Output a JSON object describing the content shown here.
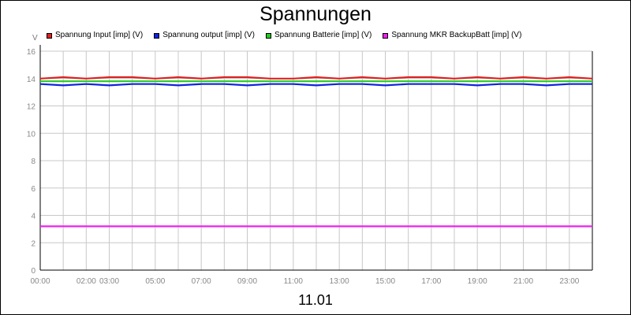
{
  "chart_data": {
    "type": "line",
    "title": "Spannungen",
    "ylabel": "V",
    "xlabel": "11.01",
    "xlim": [
      0,
      24
    ],
    "ylim": [
      0,
      16
    ],
    "yticks": [
      0,
      2,
      4,
      6,
      8,
      10,
      12,
      14,
      16
    ],
    "xticks": [
      {
        "t": 0,
        "label": "00:00"
      },
      {
        "t": 2,
        "label": "02:00"
      },
      {
        "t": 3,
        "label": "03:00"
      },
      {
        "t": 5,
        "label": "05:00"
      },
      {
        "t": 7,
        "label": "07:00"
      },
      {
        "t": 9,
        "label": "09:00"
      },
      {
        "t": 11,
        "label": "11:00"
      },
      {
        "t": 13,
        "label": "13:00"
      },
      {
        "t": 15,
        "label": "15:00"
      },
      {
        "t": 17,
        "label": "17:00"
      },
      {
        "t": 19,
        "label": "19:00"
      },
      {
        "t": 21,
        "label": "21:00"
      },
      {
        "t": 23,
        "label": "23:00"
      }
    ],
    "grid": true,
    "legend_position": "top",
    "series": [
      {
        "name": "Spannung Input [imp] (V)",
        "color": "#dd2222",
        "x": [
          0,
          1,
          2,
          3,
          4,
          5,
          6,
          7,
          8,
          9,
          10,
          11,
          12,
          13,
          14,
          15,
          16,
          17,
          18,
          19,
          20,
          21,
          22,
          23,
          24
        ],
        "y": [
          14.0,
          14.1,
          14.0,
          14.1,
          14.1,
          14.0,
          14.1,
          14.0,
          14.1,
          14.1,
          14.0,
          14.0,
          14.1,
          14.0,
          14.1,
          14.0,
          14.1,
          14.1,
          14.0,
          14.1,
          14.0,
          14.1,
          14.0,
          14.1,
          14.0
        ]
      },
      {
        "name": "Spannung output [imp] (V)",
        "color": "#1122dd",
        "x": [
          0,
          1,
          2,
          3,
          4,
          5,
          6,
          7,
          8,
          9,
          10,
          11,
          12,
          13,
          14,
          15,
          16,
          17,
          18,
          19,
          20,
          21,
          22,
          23,
          24
        ],
        "y": [
          13.6,
          13.5,
          13.6,
          13.5,
          13.6,
          13.6,
          13.5,
          13.6,
          13.6,
          13.5,
          13.6,
          13.6,
          13.5,
          13.6,
          13.6,
          13.5,
          13.6,
          13.6,
          13.6,
          13.5,
          13.6,
          13.6,
          13.5,
          13.6,
          13.6
        ]
      },
      {
        "name": "Spannung Batterie [imp] (V)",
        "color": "#22cc22",
        "x": [
          0,
          1,
          2,
          3,
          4,
          5,
          6,
          7,
          8,
          9,
          10,
          11,
          12,
          13,
          14,
          15,
          16,
          17,
          18,
          19,
          20,
          21,
          22,
          23,
          24
        ],
        "y": [
          13.8,
          13.8,
          13.8,
          13.8,
          13.8,
          13.8,
          13.8,
          13.8,
          13.8,
          13.8,
          13.8,
          13.8,
          13.8,
          13.8,
          13.8,
          13.8,
          13.8,
          13.8,
          13.8,
          13.8,
          13.8,
          13.8,
          13.8,
          13.8,
          13.8
        ]
      },
      {
        "name": "Spannung MKR BackupBatt [imp] (V)",
        "color": "#ee22ee",
        "x": [
          0,
          24
        ],
        "y": [
          3.2,
          3.2
        ]
      }
    ]
  }
}
